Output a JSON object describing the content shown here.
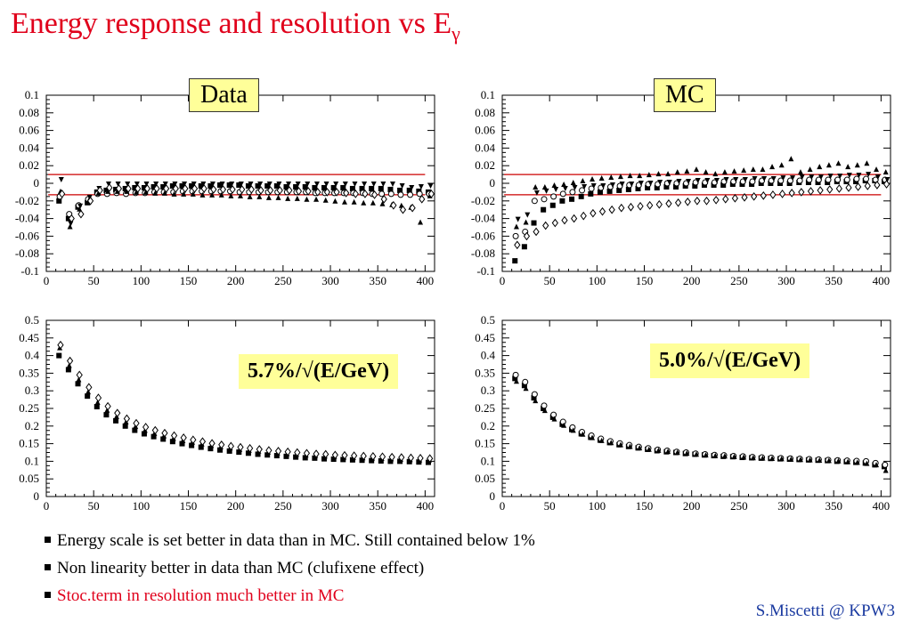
{
  "slide": {
    "title": "Energy response and resolution vs E",
    "title_subscript": "γ",
    "bullets": [
      {
        "text": "Energy scale is set better in data than in MC. Still contained below 1%",
        "color": "#000000"
      },
      {
        "text": "Non linearity better in data than MC (clufixene effect)",
        "color": "#000000"
      },
      {
        "text": "Stoc.term in resolution much better in MC",
        "color": "#e0001b"
      }
    ],
    "credit": "S.Miscetti @ KPW3"
  },
  "labels": {
    "data_tag": "Data",
    "mc_tag": "MC",
    "data_resolution": "5.7%/√(E/GeV)",
    "mc_resolution": "5.0%/√(E/GeV)"
  },
  "colors": {
    "title": "#e0001b",
    "credit": "#1a3aa0",
    "box": "#ffff99",
    "ref_line": "#cc0000"
  },
  "chart_data": [
    {
      "type": "scatter",
      "id": "data_response",
      "xlim": [
        0,
        410
      ],
      "ylim": [
        -0.1,
        0.1
      ],
      "x_ticks": [
        0,
        50,
        100,
        150,
        200,
        250,
        300,
        350,
        400
      ],
      "y_ticks": [
        -0.1,
        -0.08,
        -0.06,
        -0.04,
        -0.02,
        0,
        0.02,
        0.04,
        0.06,
        0.08,
        0.1
      ],
      "y_tick_labels": [
        "-0.1",
        "-0.08",
        "-0.06",
        "-0.04",
        "-0.02",
        "0",
        "0.02",
        "0.04",
        "0.06",
        "0.08",
        "0.1"
      ],
      "ref_lines": [
        0.01,
        -0.013
      ],
      "x": [
        15,
        25,
        35,
        45,
        55,
        65,
        75,
        85,
        95,
        105,
        115,
        125,
        135,
        145,
        155,
        165,
        175,
        185,
        195,
        205,
        215,
        225,
        235,
        245,
        255,
        265,
        275,
        285,
        295,
        305,
        315,
        325,
        335,
        345,
        355,
        365,
        375,
        385,
        395,
        405
      ],
      "series": [
        {
          "marker": "square",
          "values": [
            -0.02,
            -0.04,
            -0.027,
            -0.022,
            -0.01,
            -0.008,
            -0.007,
            -0.006,
            -0.005,
            -0.005,
            -0.004,
            -0.004,
            -0.003,
            -0.003,
            -0.003,
            -0.003,
            -0.003,
            -0.002,
            -0.002,
            -0.002,
            -0.003,
            -0.003,
            -0.003,
            -0.003,
            -0.004,
            -0.004,
            -0.004,
            -0.005,
            -0.005,
            -0.005,
            -0.005,
            -0.006,
            -0.006,
            -0.006,
            -0.006,
            -0.007,
            -0.008,
            -0.008,
            -0.009,
            -0.01
          ]
        },
        {
          "marker": "circle",
          "values": [
            -0.015,
            -0.035,
            -0.025,
            -0.018,
            -0.012,
            -0.012,
            -0.011,
            -0.012,
            -0.011,
            -0.011,
            -0.01,
            -0.01,
            -0.01,
            -0.009,
            -0.009,
            -0.009,
            -0.009,
            -0.009,
            -0.009,
            -0.01,
            -0.01,
            -0.01,
            -0.01,
            -0.01,
            -0.01,
            -0.01,
            -0.01,
            -0.011,
            -0.011,
            -0.011,
            -0.011,
            -0.011,
            -0.011,
            -0.012,
            -0.012,
            -0.012,
            -0.013,
            -0.013,
            -0.012,
            -0.012
          ]
        },
        {
          "marker": "triangle",
          "values": [
            -0.01,
            -0.05,
            -0.03,
            -0.02,
            -0.012,
            -0.01,
            -0.01,
            -0.01,
            -0.011,
            -0.011,
            -0.012,
            -0.012,
            -0.013,
            -0.013,
            -0.013,
            -0.014,
            -0.014,
            -0.014,
            -0.015,
            -0.015,
            -0.016,
            -0.016,
            -0.017,
            -0.017,
            -0.018,
            -0.018,
            -0.019,
            -0.019,
            -0.02,
            -0.021,
            -0.022,
            -0.022,
            -0.023,
            -0.023,
            -0.024,
            -0.025,
            -0.026,
            -0.028,
            -0.045,
            -0.015
          ]
        },
        {
          "marker": "triangle-down",
          "values": [
            0.005,
            -0.045,
            -0.025,
            -0.015,
            -0.005,
            0,
            0,
            0,
            0,
            0,
            0,
            0,
            0,
            0,
            0,
            0,
            0,
            0,
            0,
            0,
            0,
            0,
            0,
            0,
            0,
            0,
            0,
            0,
            0,
            0,
            0,
            0,
            0,
            0,
            0,
            0,
            -0.002,
            -0.004,
            -0.003,
            -0.002
          ]
        },
        {
          "marker": "diamond",
          "values": [
            -0.012,
            -0.04,
            -0.035,
            -0.02,
            -0.008,
            -0.005,
            -0.006,
            -0.006,
            -0.006,
            -0.006,
            -0.006,
            -0.006,
            -0.006,
            -0.006,
            -0.006,
            -0.006,
            -0.007,
            -0.007,
            -0.007,
            -0.007,
            -0.007,
            -0.008,
            -0.008,
            -0.008,
            -0.008,
            -0.009,
            -0.009,
            -0.01,
            -0.01,
            -0.01,
            -0.011,
            -0.012,
            -0.012,
            -0.013,
            -0.018,
            -0.025,
            -0.03,
            -0.028,
            -0.018,
            -0.012
          ]
        }
      ]
    },
    {
      "type": "scatter",
      "id": "mc_response",
      "xlim": [
        0,
        410
      ],
      "ylim": [
        -0.1,
        0.1
      ],
      "x_ticks": [
        0,
        50,
        100,
        150,
        200,
        250,
        300,
        350,
        400
      ],
      "y_ticks": [
        -0.1,
        -0.08,
        -0.06,
        -0.04,
        -0.02,
        0,
        0.02,
        0.04,
        0.06,
        0.08,
        0.1
      ],
      "y_tick_labels": [
        "-0.1",
        "-0.08",
        "-0.06",
        "-0.04",
        "-0.02",
        "0",
        "0.02",
        "0.04",
        "0.06",
        "0.08",
        "0.1"
      ],
      "ref_lines": [
        0.01,
        -0.013
      ],
      "x": [
        15,
        25,
        35,
        45,
        55,
        65,
        75,
        85,
        95,
        105,
        115,
        125,
        135,
        145,
        155,
        165,
        175,
        185,
        195,
        205,
        215,
        225,
        235,
        245,
        255,
        265,
        275,
        285,
        295,
        305,
        315,
        325,
        335,
        345,
        355,
        365,
        375,
        385,
        395,
        405
      ],
      "series": [
        {
          "marker": "square",
          "values": [
            -0.088,
            -0.072,
            -0.045,
            -0.03,
            -0.025,
            -0.02,
            -0.018,
            -0.015,
            -0.012,
            -0.01,
            -0.009,
            -0.008,
            -0.007,
            -0.006,
            -0.005,
            -0.005,
            -0.004,
            -0.004,
            -0.003,
            -0.003,
            -0.002,
            -0.002,
            -0.002,
            -0.001,
            -0.001,
            -0.001,
            0,
            0,
            0,
            0,
            0.001,
            0.001,
            0.001,
            0.001,
            0.002,
            0.002,
            0.002,
            0.003,
            0.003,
            0.002
          ]
        },
        {
          "marker": "circle",
          "values": [
            -0.06,
            -0.055,
            -0.02,
            -0.018,
            -0.015,
            -0.012,
            -0.01,
            -0.008,
            -0.006,
            -0.005,
            -0.004,
            -0.003,
            -0.002,
            -0.002,
            -0.001,
            -0.001,
            0,
            0,
            0,
            0.001,
            0.001,
            0.001,
            0.002,
            0.002,
            0.002,
            0.002,
            0.003,
            0.003,
            0.003,
            0.003,
            0.003,
            0.004,
            0.004,
            0.004,
            0.004,
            0.004,
            0.005,
            0.005,
            0.004,
            0.004
          ]
        },
        {
          "marker": "triangle",
          "values": [
            -0.05,
            -0.045,
            -0.005,
            -0.005,
            -0.003,
            -0.002,
            0,
            0.002,
            0.004,
            0.005,
            0.006,
            0.007,
            0.008,
            0.008,
            0.009,
            0.01,
            0.01,
            0.012,
            0.013,
            0.015,
            0.012,
            0.01,
            0.012,
            0.013,
            0.014,
            0.015,
            0.015,
            0.018,
            0.02,
            0.027,
            0.012,
            0.015,
            0.018,
            0.02,
            0.022,
            0.018,
            0.02,
            0.022,
            0.015,
            0.012
          ]
        },
        {
          "marker": "diamond",
          "values": [
            -0.07,
            -0.06,
            -0.055,
            -0.048,
            -0.045,
            -0.042,
            -0.04,
            -0.037,
            -0.034,
            -0.032,
            -0.03,
            -0.028,
            -0.027,
            -0.026,
            -0.025,
            -0.024,
            -0.023,
            -0.022,
            -0.021,
            -0.02,
            -0.02,
            -0.019,
            -0.018,
            -0.017,
            -0.016,
            -0.015,
            -0.014,
            -0.013,
            -0.012,
            -0.011,
            -0.01,
            -0.009,
            -0.008,
            -0.007,
            -0.006,
            -0.005,
            -0.004,
            -0.003,
            -0.002,
            -0.001
          ]
        },
        {
          "marker": "triangle-down",
          "values": [
            -0.04,
            -0.035,
            -0.01,
            -0.008,
            -0.006,
            -0.005,
            -0.004,
            -0.003,
            -0.002,
            -0.002,
            -0.001,
            0,
            0,
            0.001,
            0.001,
            0.002,
            0.002,
            0.003,
            0.003,
            0.004,
            0.004,
            0.004,
            0.005,
            0.005,
            0.005,
            0.006,
            0.006,
            0.006,
            0.007,
            0.007,
            0.008,
            0.008,
            0.008,
            0.009,
            0.009,
            0.01,
            0.01,
            0.011,
            0.008,
            0.005
          ]
        }
      ]
    },
    {
      "type": "scatter",
      "id": "data_resolution",
      "xlim": [
        0,
        410
      ],
      "ylim": [
        0,
        0.5
      ],
      "x_ticks": [
        0,
        50,
        100,
        150,
        200,
        250,
        300,
        350,
        400
      ],
      "y_ticks": [
        0,
        0.05,
        0.1,
        0.15,
        0.2,
        0.25,
        0.3,
        0.35,
        0.4,
        0.45,
        0.5
      ],
      "y_tick_labels": [
        "0",
        "0.05",
        "0.1",
        "0.15",
        "0.2",
        "0.25",
        "0.3",
        "0.35",
        "0.4",
        "0.45",
        "0.5"
      ],
      "x": [
        15,
        25,
        35,
        45,
        55,
        65,
        75,
        85,
        95,
        105,
        115,
        125,
        135,
        145,
        155,
        165,
        175,
        185,
        195,
        205,
        215,
        225,
        235,
        245,
        255,
        265,
        275,
        285,
        295,
        305,
        315,
        325,
        335,
        345,
        355,
        365,
        375,
        385,
        395,
        405
      ],
      "series": [
        {
          "marker": "square",
          "values": [
            0.4,
            0.36,
            0.32,
            0.285,
            0.255,
            0.232,
            0.215,
            0.2,
            0.188,
            0.178,
            0.17,
            0.163,
            0.156,
            0.15,
            0.145,
            0.14,
            0.136,
            0.132,
            0.129,
            0.126,
            0.123,
            0.12,
            0.118,
            0.116,
            0.114,
            0.112,
            0.11,
            0.109,
            0.107,
            0.106,
            0.105,
            0.104,
            0.103,
            0.102,
            0.101,
            0.1,
            0.1,
            0.099,
            0.098,
            0.097
          ]
        },
        {
          "marker": "triangle",
          "values": [
            0.42,
            0.37,
            0.33,
            0.295,
            0.265,
            0.243,
            0.225,
            0.21,
            0.197,
            0.186,
            0.177,
            0.17,
            0.163,
            0.157,
            0.152,
            0.147,
            0.143,
            0.139,
            0.136,
            0.132,
            0.129,
            0.127,
            0.124,
            0.122,
            0.12,
            0.118,
            0.116,
            0.115,
            0.113,
            0.112,
            0.11,
            0.109,
            0.108,
            0.107,
            0.106,
            0.105,
            0.104,
            0.103,
            0.102,
            0.101
          ]
        },
        {
          "marker": "diamond",
          "values": [
            0.43,
            0.385,
            0.345,
            0.31,
            0.28,
            0.256,
            0.237,
            0.221,
            0.208,
            0.197,
            0.188,
            0.18,
            0.173,
            0.167,
            0.161,
            0.156,
            0.151,
            0.147,
            0.143,
            0.14,
            0.137,
            0.134,
            0.131,
            0.129,
            0.127,
            0.125,
            0.123,
            0.121,
            0.12,
            0.118,
            0.117,
            0.116,
            0.115,
            0.114,
            0.113,
            0.112,
            0.111,
            0.11,
            0.109,
            0.108
          ]
        }
      ]
    },
    {
      "type": "scatter",
      "id": "mc_resolution",
      "xlim": [
        0,
        410
      ],
      "ylim": [
        0,
        0.5
      ],
      "x_ticks": [
        0,
        50,
        100,
        150,
        200,
        250,
        300,
        350,
        400
      ],
      "y_ticks": [
        0,
        0.05,
        0.1,
        0.15,
        0.2,
        0.25,
        0.3,
        0.35,
        0.4,
        0.45,
        0.5
      ],
      "y_tick_labels": [
        "0",
        "0.05",
        "0.1",
        "0.15",
        "0.2",
        "0.25",
        "0.3",
        "0.35",
        "0.4",
        "0.45",
        "0.5"
      ],
      "x": [
        15,
        25,
        35,
        45,
        55,
        65,
        75,
        85,
        95,
        105,
        115,
        125,
        135,
        145,
        155,
        165,
        175,
        185,
        195,
        205,
        215,
        225,
        235,
        245,
        255,
        265,
        275,
        285,
        295,
        305,
        315,
        325,
        335,
        345,
        355,
        365,
        375,
        385,
        395,
        405
      ],
      "series": [
        {
          "marker": "square",
          "values": [
            0.335,
            0.315,
            0.28,
            0.25,
            0.225,
            0.205,
            0.19,
            0.178,
            0.168,
            0.16,
            0.153,
            0.147,
            0.142,
            0.138,
            0.134,
            0.13,
            0.127,
            0.125,
            0.122,
            0.12,
            0.118,
            0.116,
            0.114,
            0.113,
            0.111,
            0.11,
            0.109,
            0.108,
            0.107,
            0.106,
            0.105,
            0.104,
            0.103,
            0.102,
            0.1,
            0.099,
            0.097,
            0.095,
            0.09,
            0.085
          ]
        },
        {
          "marker": "circle",
          "values": [
            0.345,
            0.325,
            0.29,
            0.258,
            0.232,
            0.212,
            0.196,
            0.183,
            0.173,
            0.164,
            0.157,
            0.151,
            0.146,
            0.141,
            0.137,
            0.133,
            0.13,
            0.127,
            0.125,
            0.122,
            0.12,
            0.118,
            0.117,
            0.115,
            0.114,
            0.112,
            0.111,
            0.11,
            0.109,
            0.108,
            0.107,
            0.106,
            0.105,
            0.104,
            0.103,
            0.102,
            0.101,
            0.1,
            0.095,
            0.09
          ]
        },
        {
          "marker": "triangle",
          "values": [
            0.325,
            0.305,
            0.27,
            0.242,
            0.218,
            0.2,
            0.186,
            0.175,
            0.165,
            0.157,
            0.151,
            0.145,
            0.14,
            0.136,
            0.132,
            0.129,
            0.126,
            0.123,
            0.121,
            0.118,
            0.116,
            0.114,
            0.113,
            0.111,
            0.11,
            0.108,
            0.107,
            0.106,
            0.105,
            0.104,
            0.103,
            0.102,
            0.101,
            0.1,
            0.099,
            0.097,
            0.095,
            0.092,
            0.088,
            0.072
          ]
        }
      ]
    }
  ]
}
